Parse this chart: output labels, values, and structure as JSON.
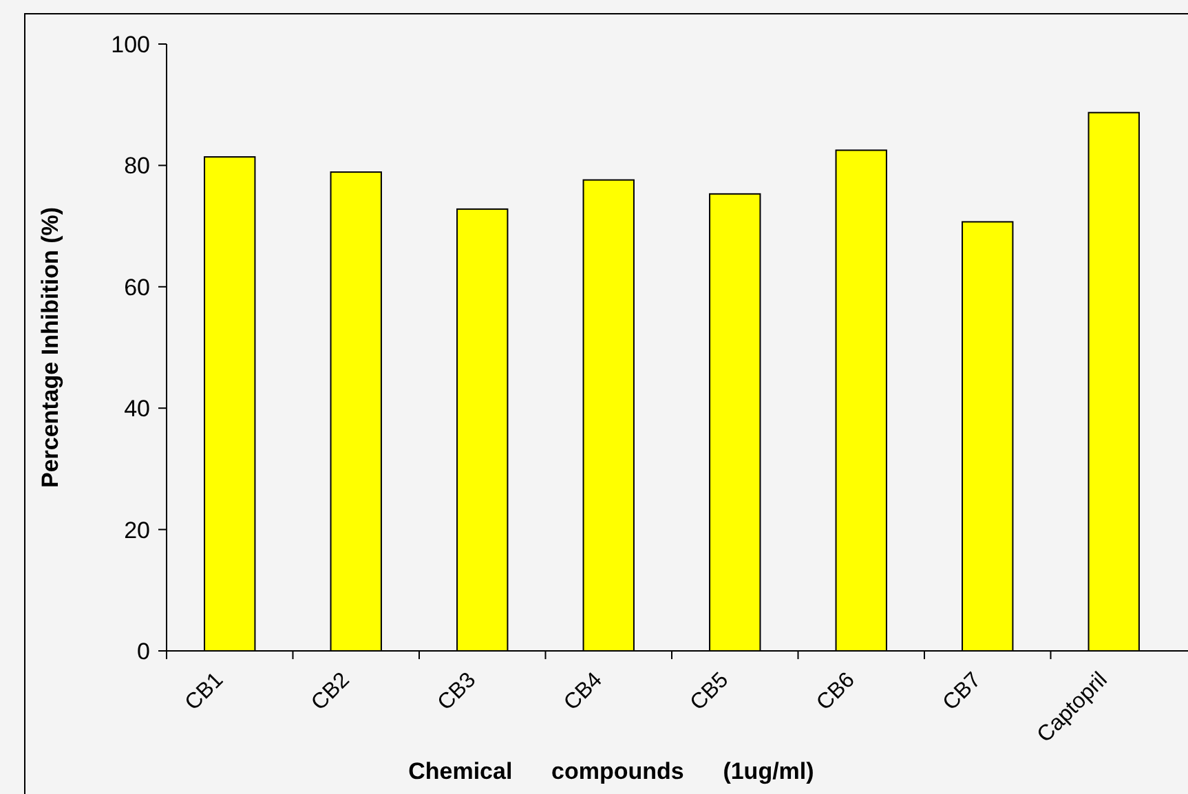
{
  "chart_data": {
    "type": "bar",
    "xlabel": "Chemical      compounds      (1ug/ml)",
    "ylabel": "Percentage Inhibition (%)",
    "categories": [
      "CB1",
      "CB2",
      "CB3",
      "CB4",
      "CB5",
      "CB6",
      "CB7",
      "Captopril"
    ],
    "values": [
      81.4,
      78.9,
      72.8,
      77.6,
      75.3,
      82.5,
      70.7,
      88.7
    ],
    "color": "#ffff00",
    "ylim": [
      0,
      100
    ],
    "yticks": [
      0,
      20,
      40,
      60,
      80,
      100
    ],
    "grid": false
  }
}
